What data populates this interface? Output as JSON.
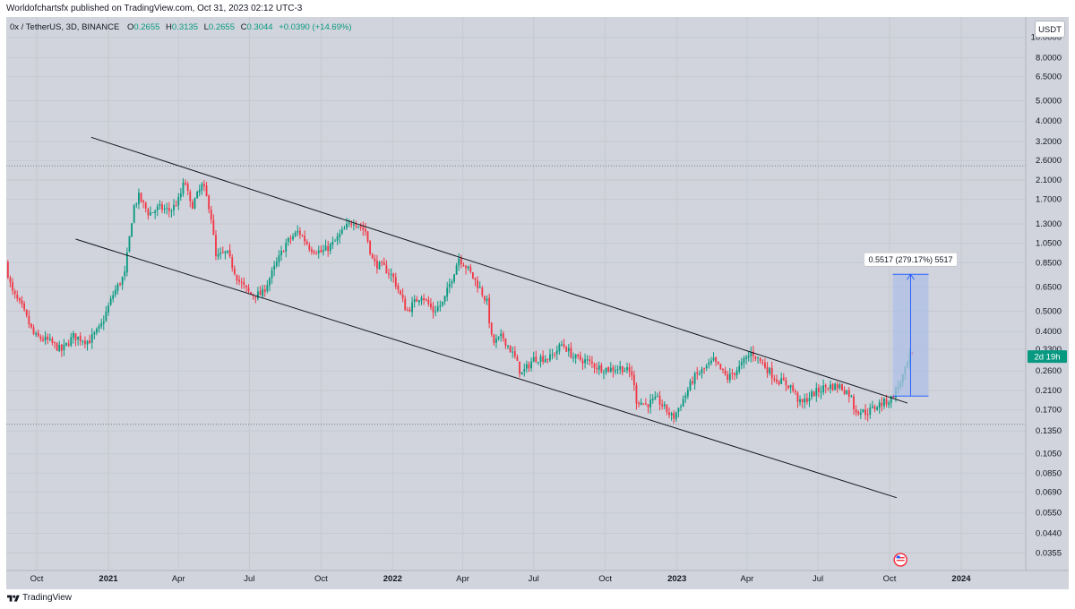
{
  "header": {
    "published_text": "Worldofchartsfx published on TradingView.com, Oct 31, 2023 02:12 UTC-3"
  },
  "legend": {
    "symbol": "0x / TetherUS, 3D, BINANCE",
    "open_label": "O",
    "open": "0.2655",
    "high_label": "H",
    "high": "0.3135",
    "low_label": "L",
    "low": "0.2655",
    "close_label": "C",
    "close": "0.3044",
    "change": "+0.0390 (+14.69%)"
  },
  "currency_button": "USDT",
  "footer": {
    "brand": "TradingView"
  },
  "colors": {
    "background": "#d1d4dc",
    "up": "#089981",
    "down": "#f23645",
    "measure_fill": "#aebfe6",
    "measure_line": "#2962ff",
    "trendline": "#131722"
  },
  "chart_data": {
    "type": "candlestick",
    "title": "0x / TetherUS, 3D, BINANCE",
    "y_scale": "log",
    "ylim": [
      0.03,
      10.0
    ],
    "y_ticks": [
      "10.0000",
      "8.0000",
      "6.5000",
      "5.0000",
      "4.0000",
      "3.2000",
      "2.6000",
      "2.1000",
      "1.7000",
      "1.3000",
      "1.0500",
      "0.8500",
      "0.6500",
      "0.5000",
      "0.4000",
      "0.3300",
      "0.2600",
      "0.2100",
      "0.1700",
      "0.1350",
      "0.1050",
      "0.0850",
      "0.0690",
      "0.0550",
      "0.0440",
      "0.0355"
    ],
    "x_ticks": [
      {
        "label": "Oct",
        "date": "2020-10-01"
      },
      {
        "label": "2021",
        "date": "2021-01-01"
      },
      {
        "label": "Apr",
        "date": "2021-04-01"
      },
      {
        "label": "Jul",
        "date": "2021-07-01"
      },
      {
        "label": "Oct",
        "date": "2021-10-01"
      },
      {
        "label": "2022",
        "date": "2022-01-01"
      },
      {
        "label": "Apr",
        "date": "2022-04-01"
      },
      {
        "label": "Jul",
        "date": "2022-07-01"
      },
      {
        "label": "Oct",
        "date": "2022-10-01"
      },
      {
        "label": "2023",
        "date": "2023-01-01"
      },
      {
        "label": "Apr",
        "date": "2023-04-01"
      },
      {
        "label": "Jul",
        "date": "2023-07-01"
      },
      {
        "label": "Oct",
        "date": "2023-10-01"
      },
      {
        "label": "2024",
        "date": "2024-01-01"
      }
    ],
    "last_price_label": "2d 19h",
    "last_price": 0.3044,
    "horizontal_levels": [
      2.45,
      0.145
    ],
    "trendlines": [
      {
        "from": {
          "date": "2020-12-10",
          "price": 3.35
        },
        "to": {
          "date": "2023-10-24",
          "price": 0.183
        }
      },
      {
        "from": {
          "date": "2020-11-20",
          "price": 1.1
        },
        "to": {
          "date": "2023-10-10",
          "price": 0.065
        }
      }
    ],
    "measure": {
      "label": "0.5517 (279.17%) 5517",
      "from": {
        "date": "2023-10-05",
        "price": 0.1975
      },
      "to": {
        "date": "2023-11-20",
        "price": 0.749
      }
    },
    "anchors": [
      {
        "date": "2020-08-25",
        "price": 0.85
      },
      {
        "date": "2020-09-02",
        "price": 0.62
      },
      {
        "date": "2020-09-15",
        "price": 0.52
      },
      {
        "date": "2020-10-01",
        "price": 0.38
      },
      {
        "date": "2020-10-20",
        "price": 0.36
      },
      {
        "date": "2020-11-05",
        "price": 0.325
      },
      {
        "date": "2020-11-20",
        "price": 0.38
      },
      {
        "date": "2020-12-10",
        "price": 0.36
      },
      {
        "date": "2020-12-25",
        "price": 0.42
      },
      {
        "date": "2021-01-10",
        "price": 0.6
      },
      {
        "date": "2021-01-25",
        "price": 0.75
      },
      {
        "date": "2021-02-05",
        "price": 1.55
      },
      {
        "date": "2021-02-12",
        "price": 1.75
      },
      {
        "date": "2021-02-25",
        "price": 1.45
      },
      {
        "date": "2021-03-10",
        "price": 1.55
      },
      {
        "date": "2021-03-25",
        "price": 1.5
      },
      {
        "date": "2021-04-05",
        "price": 1.7
      },
      {
        "date": "2021-04-12",
        "price": 2.1
      },
      {
        "date": "2021-04-20",
        "price": 1.55
      },
      {
        "date": "2021-05-05",
        "price": 2.0
      },
      {
        "date": "2021-05-15",
        "price": 1.5
      },
      {
        "date": "2021-05-22",
        "price": 0.9
      },
      {
        "date": "2021-06-05",
        "price": 0.95
      },
      {
        "date": "2021-06-20",
        "price": 0.7
      },
      {
        "date": "2021-07-05",
        "price": 0.6
      },
      {
        "date": "2021-07-20",
        "price": 0.6
      },
      {
        "date": "2021-08-05",
        "price": 0.8
      },
      {
        "date": "2021-08-20",
        "price": 1.05
      },
      {
        "date": "2021-09-05",
        "price": 1.2
      },
      {
        "date": "2021-09-20",
        "price": 1.0
      },
      {
        "date": "2021-10-05",
        "price": 0.95
      },
      {
        "date": "2021-10-20",
        "price": 1.05
      },
      {
        "date": "2021-11-05",
        "price": 1.25
      },
      {
        "date": "2021-11-15",
        "price": 1.35
      },
      {
        "date": "2021-11-30",
        "price": 1.2
      },
      {
        "date": "2021-12-10",
        "price": 0.85
      },
      {
        "date": "2021-12-25",
        "price": 0.8
      },
      {
        "date": "2022-01-05",
        "price": 0.72
      },
      {
        "date": "2022-01-22",
        "price": 0.5
      },
      {
        "date": "2022-02-10",
        "price": 0.6
      },
      {
        "date": "2022-02-25",
        "price": 0.5
      },
      {
        "date": "2022-03-10",
        "price": 0.55
      },
      {
        "date": "2022-03-30",
        "price": 0.9
      },
      {
        "date": "2022-04-10",
        "price": 0.8
      },
      {
        "date": "2022-04-25",
        "price": 0.65
      },
      {
        "date": "2022-05-05",
        "price": 0.55
      },
      {
        "date": "2022-05-12",
        "price": 0.35
      },
      {
        "date": "2022-05-25",
        "price": 0.38
      },
      {
        "date": "2022-06-10",
        "price": 0.3
      },
      {
        "date": "2022-06-18",
        "price": 0.25
      },
      {
        "date": "2022-07-05",
        "price": 0.3
      },
      {
        "date": "2022-07-25",
        "price": 0.3
      },
      {
        "date": "2022-08-10",
        "price": 0.35
      },
      {
        "date": "2022-08-25",
        "price": 0.3
      },
      {
        "date": "2022-09-10",
        "price": 0.29
      },
      {
        "date": "2022-09-25",
        "price": 0.27
      },
      {
        "date": "2022-10-10",
        "price": 0.265
      },
      {
        "date": "2022-10-25",
        "price": 0.27
      },
      {
        "date": "2022-11-08",
        "price": 0.25
      },
      {
        "date": "2022-11-12",
        "price": 0.19
      },
      {
        "date": "2022-11-25",
        "price": 0.18
      },
      {
        "date": "2022-12-10",
        "price": 0.19
      },
      {
        "date": "2022-12-30",
        "price": 0.155
      },
      {
        "date": "2023-01-15",
        "price": 0.2
      },
      {
        "date": "2023-01-25",
        "price": 0.24
      },
      {
        "date": "2023-02-05",
        "price": 0.26
      },
      {
        "date": "2023-02-20",
        "price": 0.29
      },
      {
        "date": "2023-03-10",
        "price": 0.24
      },
      {
        "date": "2023-03-25",
        "price": 0.27
      },
      {
        "date": "2023-04-10",
        "price": 0.32
      },
      {
        "date": "2023-04-25",
        "price": 0.28
      },
      {
        "date": "2023-05-10",
        "price": 0.24
      },
      {
        "date": "2023-05-30",
        "price": 0.22
      },
      {
        "date": "2023-06-12",
        "price": 0.18
      },
      {
        "date": "2023-06-25",
        "price": 0.2
      },
      {
        "date": "2023-07-15",
        "price": 0.22
      },
      {
        "date": "2023-08-01",
        "price": 0.22
      },
      {
        "date": "2023-08-15",
        "price": 0.2
      },
      {
        "date": "2023-08-20",
        "price": 0.17
      },
      {
        "date": "2023-09-05",
        "price": 0.165
      },
      {
        "date": "2023-09-20",
        "price": 0.18
      },
      {
        "date": "2023-10-05",
        "price": 0.19
      },
      {
        "date": "2023-10-15",
        "price": 0.22
      },
      {
        "date": "2023-10-25",
        "price": 0.2655
      },
      {
        "date": "2023-10-30",
        "price": 0.3044
      }
    ]
  }
}
